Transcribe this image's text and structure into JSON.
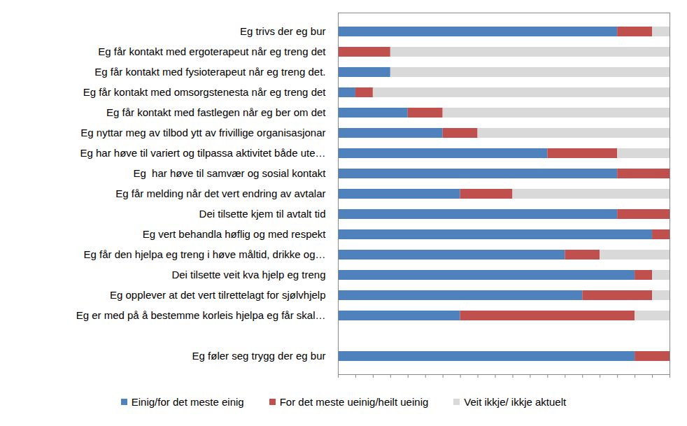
{
  "chart_data": {
    "type": "bar",
    "orientation": "horizontal",
    "stacked": true,
    "categories": [
      "Eg trivs der eg bur",
      "Eg får kontakt med ergoterapeut når eg treng det",
      "Eg får kontakt med fysioterapeut når eg treng det.",
      "Eg får kontakt med omsorgstenesta når eg treng det",
      "Eg får kontakt med fastlegen når eg ber om det",
      "Eg nyttar meg av tilbod ytt av frivillige organisasjonar",
      "Eg har høve til variert og tilpassa aktivitet både ute…",
      "Eg  har høve til samvær og sosial kontakt",
      "Eg får melding når det vert endring av avtalar",
      "Dei tilsette kjem til avtalt tid",
      "Eg vert behandla høflig og med respekt",
      "Eg får den hjelpa eg treng i høve måltid, drikke og…",
      "Dei tilsette veit kva hjelp eg treng",
      "Eg opplever at det vert tilrettelagt for sjølvhjelp",
      "Eg er med på å bestemme korleis hjelpa eg får skal…",
      null,
      "Eg føler seg trygg der eg bur"
    ],
    "series": [
      {
        "name": "Einig/for det meste einig",
        "color": "#4F81BD",
        "values": [
          16,
          0,
          3,
          1,
          4,
          6,
          12,
          16,
          7,
          16,
          18,
          13,
          17,
          14,
          7,
          0,
          17
        ]
      },
      {
        "name": "For det meste ueinig/heilt ueinig",
        "color": "#C0504D",
        "values": [
          2,
          3,
          0,
          1,
          2,
          2,
          4,
          3,
          3,
          3,
          1,
          2,
          1,
          4,
          10,
          0,
          2
        ]
      },
      {
        "name": "Veit ikkje/ ikkje aktuelt",
        "color": "#D9D9D9",
        "values": [
          1,
          16,
          16,
          17,
          13,
          11,
          3,
          0,
          9,
          0,
          0,
          4,
          1,
          1,
          2,
          0,
          0
        ]
      }
    ],
    "xlim": [
      0,
      19
    ],
    "xticks": [
      0,
      1,
      2,
      3,
      4,
      5,
      6,
      7,
      8,
      9,
      10,
      11,
      12,
      13,
      14,
      15,
      16,
      17,
      18,
      19
    ],
    "tick_labels": "y",
    "grid": false,
    "legend": "bottom"
  }
}
